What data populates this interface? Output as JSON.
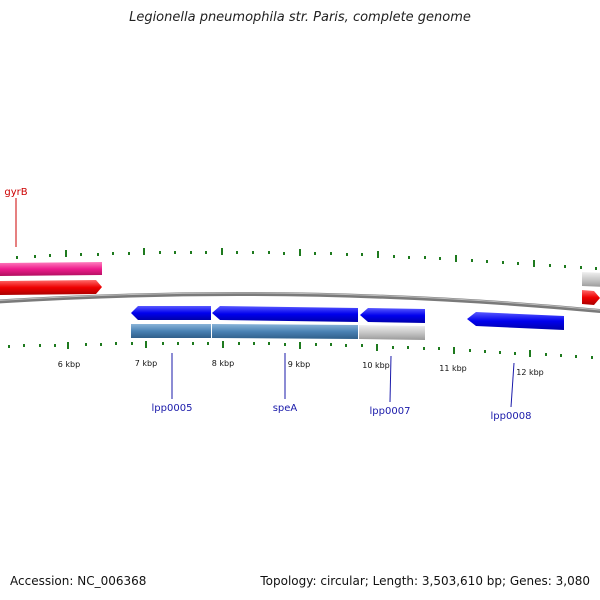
{
  "title": "Legionella pneumophila str. Paris, complete genome",
  "accession": "Accession: NC_006368",
  "topology": "Topology: circular; Length: 3,503,610 bp; Genes: 3,080",
  "colors": {
    "backbone": "#7a7a7a",
    "tick": "#1e7a1e",
    "gene_blue": "#0000ee",
    "gene_red": "#ee0000",
    "gene_pink": "#ee1c8c",
    "gene_steel": "#4a82b4",
    "gene_gray": "#bdbdbd",
    "label_blue": "#1a1aaa",
    "label_red": "#cc0000"
  },
  "ticks": [
    "6 kbp",
    "7 kbp",
    "8 kbp",
    "9 kbp",
    "10 kbp",
    "11 kbp",
    "12 kbp"
  ],
  "gene_labels": [
    {
      "name": "gyrB",
      "color": "red"
    },
    {
      "name": "lpp0005",
      "color": "blue"
    },
    {
      "name": "speA",
      "color": "blue"
    },
    {
      "name": "lpp0007",
      "color": "blue"
    },
    {
      "name": "lpp0008",
      "color": "blue"
    }
  ]
}
